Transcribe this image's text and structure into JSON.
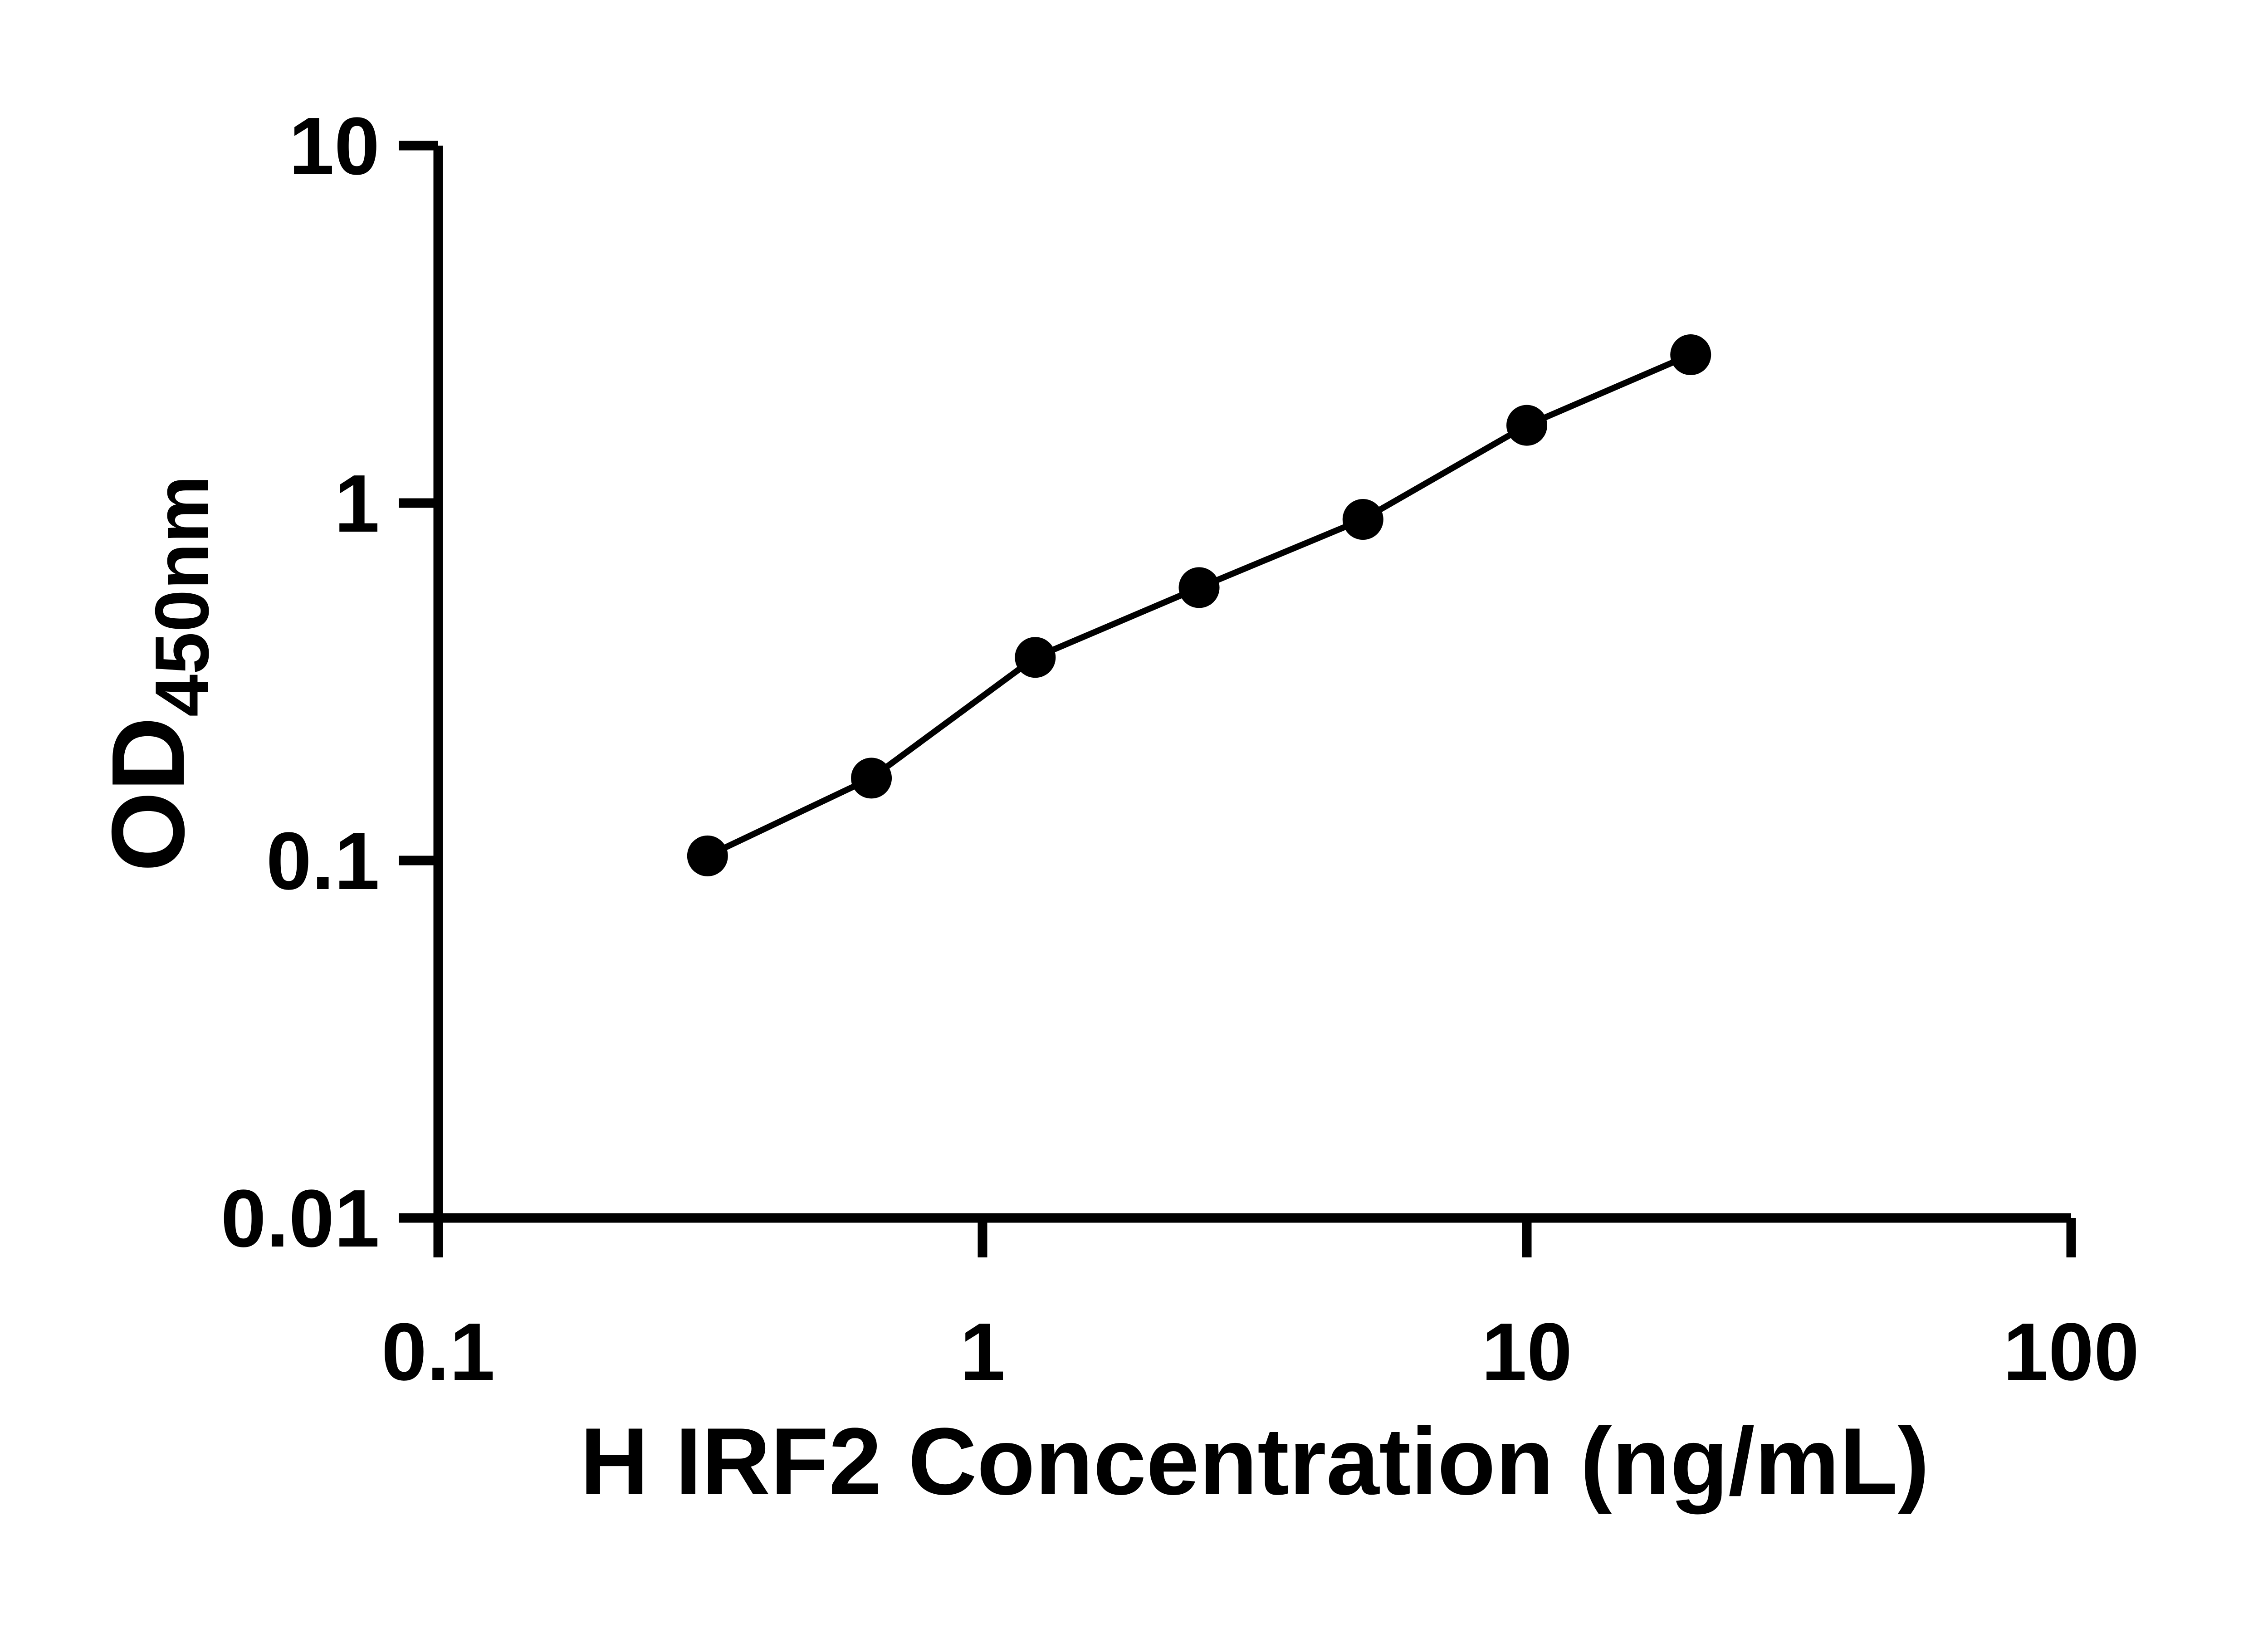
{
  "chart_data": {
    "type": "line",
    "title": "",
    "xlabel": "H IRF2 Concentration (ng/mL)",
    "ylabel": "OD450nm",
    "ylabel_main": "OD",
    "ylabel_sub": "450nm",
    "x_scale": "log10",
    "y_scale": "log10",
    "xlim": [
      0.1,
      100
    ],
    "ylim": [
      0.01,
      10
    ],
    "grid": false,
    "legend_position": "none",
    "x_ticks": [
      {
        "value": 0.1,
        "label": "0.1"
      },
      {
        "value": 1,
        "label": "1"
      },
      {
        "value": 10,
        "label": "10"
      },
      {
        "value": 100,
        "label": "100"
      }
    ],
    "y_ticks": [
      {
        "value": 0.01,
        "label": "0.01"
      },
      {
        "value": 0.1,
        "label": "0.1"
      },
      {
        "value": 1,
        "label": "1"
      },
      {
        "value": 10,
        "label": "10"
      }
    ],
    "points": [
      {
        "x": 0.3125,
        "y": 0.103
      },
      {
        "x": 0.625,
        "y": 0.17
      },
      {
        "x": 1.25,
        "y": 0.37
      },
      {
        "x": 2.5,
        "y": 0.58
      },
      {
        "x": 5,
        "y": 0.9
      },
      {
        "x": 10,
        "y": 1.65
      },
      {
        "x": 20,
        "y": 2.6
      }
    ],
    "marker": {
      "shape": "circle",
      "color": "#000000"
    },
    "line_color": "#000000",
    "axis_color": "#000000",
    "background": "#ffffff"
  }
}
